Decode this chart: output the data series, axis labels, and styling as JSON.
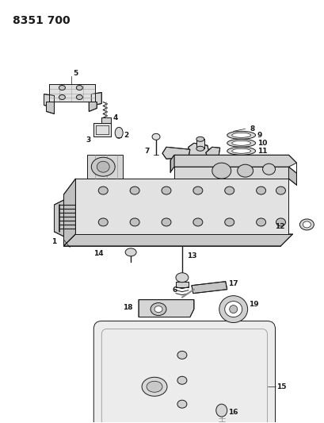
{
  "title": "8351 700",
  "bg_color": "#ffffff",
  "title_fontsize": 10,
  "title_fontweight": "bold",
  "black": "#1a1a1a",
  "gray_fill": "#d8d8d8",
  "light_fill": "#eeeeee"
}
